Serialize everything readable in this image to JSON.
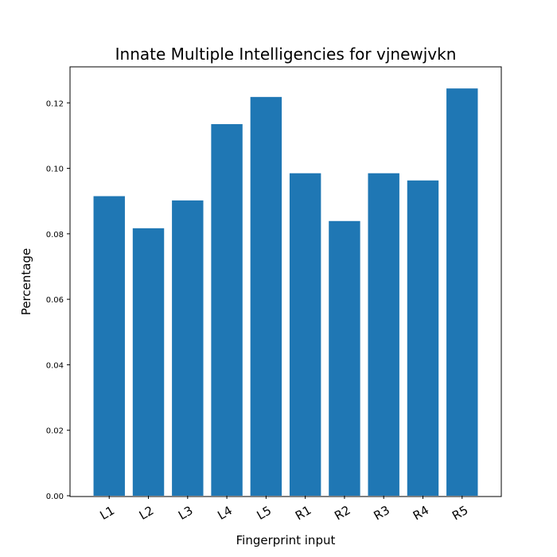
{
  "chart_data": {
    "type": "bar",
    "title": "Innate Multiple Intelligencies for vjnewjvkn",
    "xlabel": "Fingerprint input",
    "ylabel": "Percentage",
    "categories": [
      "L1",
      "L2",
      "L3",
      "L4",
      "L5",
      "R1",
      "R2",
      "R3",
      "R4",
      "R5"
    ],
    "values": [
      0.0915,
      0.0817,
      0.0902,
      0.1135,
      0.1218,
      0.0985,
      0.0839,
      0.0985,
      0.0963,
      0.1244
    ],
    "ylim": [
      0,
      0.131
    ],
    "yticks": [
      "0.00",
      "0.02",
      "0.04",
      "0.06",
      "0.08",
      "0.10",
      "0.12"
    ],
    "bar_color": "#1f77b4",
    "grid": false,
    "legend": "none"
  }
}
